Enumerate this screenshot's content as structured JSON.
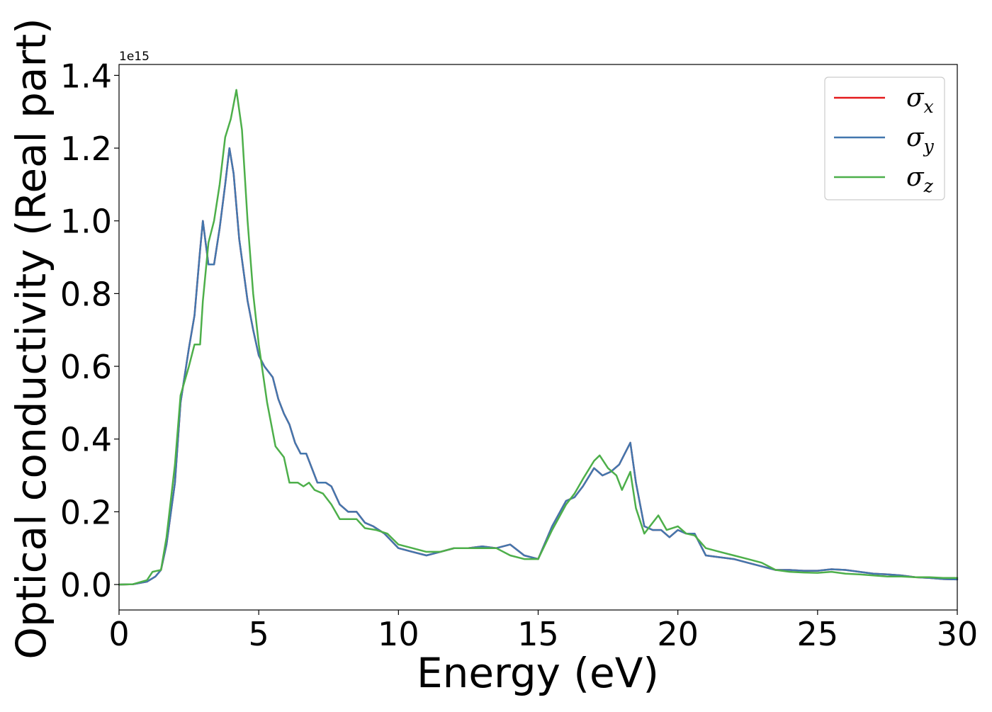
{
  "chart_data": {
    "type": "line",
    "xlabel": "Energy (eV)",
    "ylabel": "Optical conductivity (Real part)",
    "y_offset_text": "1e15",
    "xlim": [
      0,
      30
    ],
    "ylim": [
      -0.07,
      1.43
    ],
    "y_scale": 1000000000000000.0,
    "xticks": [
      0,
      5,
      10,
      15,
      20,
      25,
      30
    ],
    "xtick_labels": [
      "0",
      "5",
      "10",
      "15",
      "20",
      "25",
      "30"
    ],
    "yticks": [
      0.0,
      0.2,
      0.4,
      0.6,
      0.8,
      1.0,
      1.2,
      1.4
    ],
    "ytick_labels": [
      "0.0",
      "0.2",
      "0.4",
      "0.6",
      "0.8",
      "1.0",
      "1.2",
      "1.4"
    ],
    "grid": false,
    "legend_position": "top-right",
    "series": [
      {
        "name": "σx",
        "legend_symbol": "σ",
        "legend_subscript": "x",
        "color": "#e41a1c",
        "points": [
          [
            0,
            0
          ],
          [
            0.5,
            0.001
          ],
          [
            1,
            0.008
          ],
          [
            1.3,
            0.022
          ],
          [
            1.5,
            0.04
          ],
          [
            1.7,
            0.11
          ],
          [
            2,
            0.28
          ],
          [
            2.2,
            0.5
          ],
          [
            2.5,
            0.65
          ],
          [
            2.7,
            0.74
          ],
          [
            2.9,
            0.92
          ],
          [
            3.0,
            1.0
          ],
          [
            3.1,
            0.94
          ],
          [
            3.2,
            0.88
          ],
          [
            3.4,
            0.88
          ],
          [
            3.6,
            0.98
          ],
          [
            3.8,
            1.1
          ],
          [
            3.95,
            1.2
          ],
          [
            4.1,
            1.13
          ],
          [
            4.3,
            0.95
          ],
          [
            4.6,
            0.78
          ],
          [
            4.8,
            0.7
          ],
          [
            5,
            0.63
          ],
          [
            5.2,
            0.6
          ],
          [
            5.5,
            0.57
          ],
          [
            5.7,
            0.51
          ],
          [
            5.9,
            0.47
          ],
          [
            6.1,
            0.44
          ],
          [
            6.3,
            0.39
          ],
          [
            6.5,
            0.36
          ],
          [
            6.7,
            0.36
          ],
          [
            6.9,
            0.32
          ],
          [
            7.1,
            0.28
          ],
          [
            7.4,
            0.28
          ],
          [
            7.6,
            0.27
          ],
          [
            7.9,
            0.22
          ],
          [
            8.2,
            0.2
          ],
          [
            8.5,
            0.2
          ],
          [
            8.8,
            0.17
          ],
          [
            9.1,
            0.16
          ],
          [
            9.5,
            0.14
          ],
          [
            10,
            0.1
          ],
          [
            10.5,
            0.09
          ],
          [
            11,
            0.08
          ],
          [
            11.5,
            0.09
          ],
          [
            12,
            0.1
          ],
          [
            12.5,
            0.1
          ],
          [
            13,
            0.105
          ],
          [
            13.5,
            0.1
          ],
          [
            14,
            0.11
          ],
          [
            14.5,
            0.08
          ],
          [
            15,
            0.07
          ],
          [
            15.5,
            0.16
          ],
          [
            16,
            0.23
          ],
          [
            16.3,
            0.24
          ],
          [
            16.6,
            0.27
          ],
          [
            17,
            0.32
          ],
          [
            17.3,
            0.3
          ],
          [
            17.6,
            0.31
          ],
          [
            17.9,
            0.33
          ],
          [
            18.1,
            0.36
          ],
          [
            18.3,
            0.39
          ],
          [
            18.5,
            0.28
          ],
          [
            18.8,
            0.16
          ],
          [
            19.1,
            0.15
          ],
          [
            19.4,
            0.15
          ],
          [
            19.7,
            0.13
          ],
          [
            20,
            0.15
          ],
          [
            20.3,
            0.14
          ],
          [
            20.6,
            0.14
          ],
          [
            21,
            0.08
          ],
          [
            21.5,
            0.075
          ],
          [
            22,
            0.07
          ],
          [
            22.5,
            0.06
          ],
          [
            23,
            0.05
          ],
          [
            23.5,
            0.04
          ],
          [
            24,
            0.04
          ],
          [
            24.5,
            0.038
          ],
          [
            25,
            0.038
          ],
          [
            25.5,
            0.042
          ],
          [
            26,
            0.04
          ],
          [
            26.5,
            0.035
          ],
          [
            27,
            0.03
          ],
          [
            27.5,
            0.028
          ],
          [
            28,
            0.025
          ],
          [
            28.5,
            0.02
          ],
          [
            29,
            0.018
          ],
          [
            29.5,
            0.015
          ],
          [
            30,
            0.014
          ]
        ]
      },
      {
        "name": "σy",
        "legend_symbol": "σ",
        "legend_subscript": "y",
        "color": "#4277ae",
        "points": [
          [
            0,
            0
          ],
          [
            0.5,
            0.001
          ],
          [
            1,
            0.008
          ],
          [
            1.3,
            0.022
          ],
          [
            1.5,
            0.04
          ],
          [
            1.7,
            0.11
          ],
          [
            2,
            0.28
          ],
          [
            2.2,
            0.5
          ],
          [
            2.5,
            0.65
          ],
          [
            2.7,
            0.74
          ],
          [
            2.9,
            0.92
          ],
          [
            3.0,
            1.0
          ],
          [
            3.1,
            0.94
          ],
          [
            3.2,
            0.88
          ],
          [
            3.4,
            0.88
          ],
          [
            3.6,
            0.98
          ],
          [
            3.8,
            1.1
          ],
          [
            3.95,
            1.2
          ],
          [
            4.1,
            1.13
          ],
          [
            4.3,
            0.95
          ],
          [
            4.6,
            0.78
          ],
          [
            4.8,
            0.7
          ],
          [
            5,
            0.63
          ],
          [
            5.2,
            0.6
          ],
          [
            5.5,
            0.57
          ],
          [
            5.7,
            0.51
          ],
          [
            5.9,
            0.47
          ],
          [
            6.1,
            0.44
          ],
          [
            6.3,
            0.39
          ],
          [
            6.5,
            0.36
          ],
          [
            6.7,
            0.36
          ],
          [
            6.9,
            0.32
          ],
          [
            7.1,
            0.28
          ],
          [
            7.4,
            0.28
          ],
          [
            7.6,
            0.27
          ],
          [
            7.9,
            0.22
          ],
          [
            8.2,
            0.2
          ],
          [
            8.5,
            0.2
          ],
          [
            8.8,
            0.17
          ],
          [
            9.1,
            0.16
          ],
          [
            9.5,
            0.14
          ],
          [
            10,
            0.1
          ],
          [
            10.5,
            0.09
          ],
          [
            11,
            0.08
          ],
          [
            11.5,
            0.09
          ],
          [
            12,
            0.1
          ],
          [
            12.5,
            0.1
          ],
          [
            13,
            0.105
          ],
          [
            13.5,
            0.1
          ],
          [
            14,
            0.11
          ],
          [
            14.5,
            0.08
          ],
          [
            15,
            0.07
          ],
          [
            15.5,
            0.16
          ],
          [
            16,
            0.23
          ],
          [
            16.3,
            0.24
          ],
          [
            16.6,
            0.27
          ],
          [
            17,
            0.32
          ],
          [
            17.3,
            0.3
          ],
          [
            17.6,
            0.31
          ],
          [
            17.9,
            0.33
          ],
          [
            18.1,
            0.36
          ],
          [
            18.3,
            0.39
          ],
          [
            18.5,
            0.28
          ],
          [
            18.8,
            0.16
          ],
          [
            19.1,
            0.15
          ],
          [
            19.4,
            0.15
          ],
          [
            19.7,
            0.13
          ],
          [
            20,
            0.15
          ],
          [
            20.3,
            0.14
          ],
          [
            20.6,
            0.14
          ],
          [
            21,
            0.08
          ],
          [
            21.5,
            0.075
          ],
          [
            22,
            0.07
          ],
          [
            22.5,
            0.06
          ],
          [
            23,
            0.05
          ],
          [
            23.5,
            0.04
          ],
          [
            24,
            0.04
          ],
          [
            24.5,
            0.038
          ],
          [
            25,
            0.038
          ],
          [
            25.5,
            0.042
          ],
          [
            26,
            0.04
          ],
          [
            26.5,
            0.035
          ],
          [
            27,
            0.03
          ],
          [
            27.5,
            0.028
          ],
          [
            28,
            0.025
          ],
          [
            28.5,
            0.02
          ],
          [
            29,
            0.018
          ],
          [
            29.5,
            0.015
          ],
          [
            30,
            0.014
          ]
        ]
      },
      {
        "name": "σz",
        "legend_symbol": "σ",
        "legend_subscript": "z",
        "color": "#4daf4a",
        "points": [
          [
            0,
            0
          ],
          [
            0.5,
            0.001
          ],
          [
            1,
            0.012
          ],
          [
            1.2,
            0.035
          ],
          [
            1.5,
            0.04
          ],
          [
            1.7,
            0.13
          ],
          [
            2,
            0.33
          ],
          [
            2.2,
            0.52
          ],
          [
            2.5,
            0.6
          ],
          [
            2.7,
            0.66
          ],
          [
            2.9,
            0.66
          ],
          [
            3.0,
            0.78
          ],
          [
            3.2,
            0.94
          ],
          [
            3.4,
            1.0
          ],
          [
            3.6,
            1.1
          ],
          [
            3.8,
            1.23
          ],
          [
            4.0,
            1.28
          ],
          [
            4.2,
            1.36
          ],
          [
            4.4,
            1.25
          ],
          [
            4.6,
            1.0
          ],
          [
            4.8,
            0.8
          ],
          [
            5.0,
            0.66
          ],
          [
            5.3,
            0.5
          ],
          [
            5.6,
            0.38
          ],
          [
            5.9,
            0.35
          ],
          [
            6.1,
            0.28
          ],
          [
            6.4,
            0.28
          ],
          [
            6.6,
            0.27
          ],
          [
            6.8,
            0.28
          ],
          [
            7.0,
            0.26
          ],
          [
            7.3,
            0.25
          ],
          [
            7.6,
            0.22
          ],
          [
            7.9,
            0.18
          ],
          [
            8.2,
            0.18
          ],
          [
            8.5,
            0.18
          ],
          [
            8.8,
            0.155
          ],
          [
            9.2,
            0.15
          ],
          [
            9.6,
            0.14
          ],
          [
            10,
            0.11
          ],
          [
            10.5,
            0.1
          ],
          [
            11,
            0.09
          ],
          [
            11.5,
            0.09
          ],
          [
            12,
            0.1
          ],
          [
            12.5,
            0.1
          ],
          [
            13,
            0.1
          ],
          [
            13.5,
            0.1
          ],
          [
            14,
            0.08
          ],
          [
            14.5,
            0.07
          ],
          [
            15,
            0.07
          ],
          [
            15.5,
            0.15
          ],
          [
            16,
            0.22
          ],
          [
            16.3,
            0.25
          ],
          [
            16.6,
            0.29
          ],
          [
            17,
            0.34
          ],
          [
            17.2,
            0.355
          ],
          [
            17.5,
            0.32
          ],
          [
            17.8,
            0.3
          ],
          [
            18,
            0.26
          ],
          [
            18.3,
            0.31
          ],
          [
            18.5,
            0.21
          ],
          [
            18.8,
            0.14
          ],
          [
            19.0,
            0.16
          ],
          [
            19.3,
            0.19
          ],
          [
            19.6,
            0.15
          ],
          [
            20,
            0.16
          ],
          [
            20.3,
            0.14
          ],
          [
            20.6,
            0.135
          ],
          [
            21,
            0.1
          ],
          [
            21.5,
            0.09
          ],
          [
            22,
            0.08
          ],
          [
            22.5,
            0.07
          ],
          [
            23,
            0.06
          ],
          [
            23.5,
            0.04
          ],
          [
            24,
            0.035
          ],
          [
            24.5,
            0.033
          ],
          [
            25,
            0.032
          ],
          [
            25.5,
            0.035
          ],
          [
            26,
            0.03
          ],
          [
            26.5,
            0.028
          ],
          [
            27,
            0.025
          ],
          [
            27.5,
            0.022
          ],
          [
            28,
            0.022
          ],
          [
            28.5,
            0.02
          ],
          [
            29,
            0.02
          ],
          [
            29.5,
            0.018
          ],
          [
            30,
            0.018
          ]
        ]
      }
    ]
  }
}
